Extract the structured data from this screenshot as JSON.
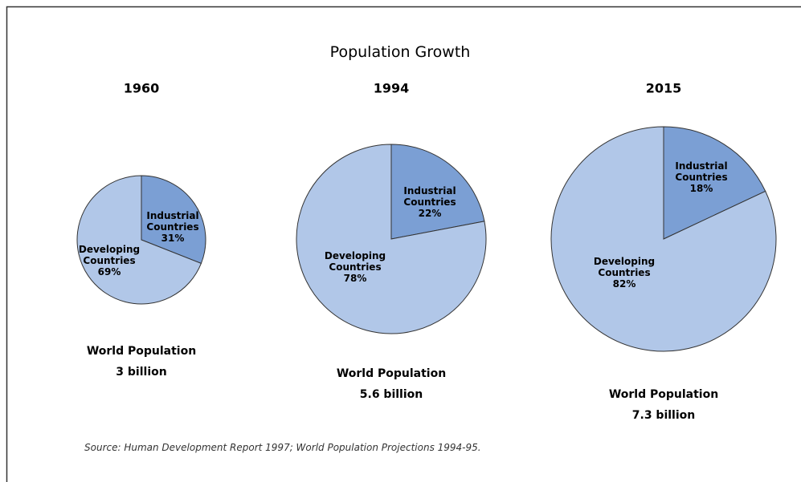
{
  "title": "Population Growth",
  "source": "Source: Human Development Report 1997; World Population Projections 1994-95.",
  "chart_data": [
    {
      "type": "pie",
      "title": "1960",
      "categories": [
        "Industrial Countries",
        "Developing Countries"
      ],
      "values": [
        31,
        69
      ],
      "value_labels": [
        "31%",
        "69%"
      ],
      "colors": [
        "#7b9fd4",
        "#b1c7e8"
      ],
      "caption": [
        "World Population",
        "3 billion"
      ]
    },
    {
      "type": "pie",
      "title": "1994",
      "categories": [
        "Industrial Countries",
        "Developing Countries"
      ],
      "values": [
        22,
        78
      ],
      "value_labels": [
        "22%",
        "78%"
      ],
      "colors": [
        "#7b9fd4",
        "#b1c7e8"
      ],
      "caption": [
        "World Population",
        "5.6 billion"
      ]
    },
    {
      "type": "pie",
      "title": "2015",
      "categories": [
        "Industrial Countries",
        "Developing Countries"
      ],
      "values": [
        18,
        82
      ],
      "value_labels": [
        "18%",
        "82%"
      ],
      "colors": [
        "#7b9fd4",
        "#b1c7e8"
      ],
      "caption": [
        "World Population",
        "7.3 billion"
      ]
    }
  ]
}
